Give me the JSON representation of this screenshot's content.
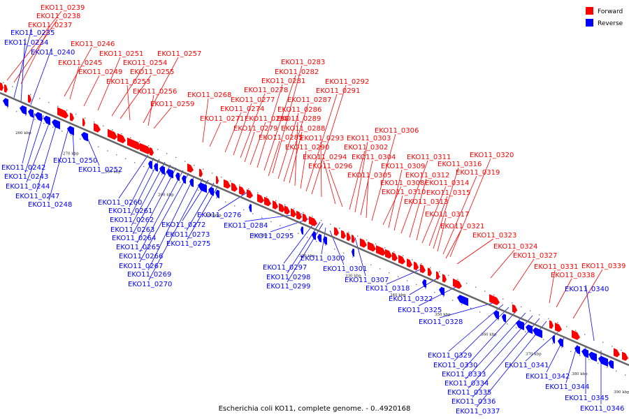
{
  "caption": "Escherichia coli KO11, complete genome. - 0..4920168",
  "legend": [
    {
      "label": "Forward",
      "color": "#ff0000"
    },
    {
      "label": "Reverse",
      "color": "#0000ff"
    }
  ],
  "colors": {
    "forward": "#ff0000",
    "reverse": "#0000ff",
    "backbone": "#666666"
  },
  "ticks": [
    "260 kbp",
    "270 kbp",
    "280 kbp",
    "290 kbp",
    "300 kbp",
    "310 kbp",
    "320 kbp",
    "330 kbp",
    "340 kbp",
    "350 kbp",
    "360 kbp",
    "370 kbp",
    "380 kbp",
    "390 kbp"
  ],
  "forward_labels": [
    "EKO11_0239",
    "EKO11_0238",
    "EKO11_0237",
    "EKO11_0246",
    "EKO11_0245",
    "EKO11_0249",
    "EKO11_0251",
    "EKO11_0254",
    "EKO11_0255",
    "EKO11_0253",
    "EKO11_0257",
    "EKO11_0256",
    "EKO11_0259",
    "EKO11_0268",
    "EKO11_0271",
    "EKO11_0274",
    "EKO11_0277",
    "EKO11_0278",
    "EKO11_0279",
    "EKO11_0280",
    "EKO11_0281",
    "EKO11_0282",
    "EKO11_0283",
    "EKO11_0285",
    "EKO11_0286",
    "EKO11_0287",
    "EKO11_0288",
    "EKO11_0289",
    "EKO11_0290",
    "EKO11_0291",
    "EKO11_0292",
    "EKO11_0293",
    "EKO11_0294",
    "EKO11_0296",
    "EKO11_0302",
    "EKO11_0303",
    "EKO11_0304",
    "EKO11_0305",
    "EKO11_0306",
    "EKO11_0308",
    "EKO11_0309",
    "EKO11_0310",
    "EKO11_0311",
    "EKO11_0312",
    "EKO11_0313",
    "EKO11_0314",
    "EKO11_0315",
    "EKO11_0316",
    "EKO11_0317",
    "EKO11_0319",
    "EKO11_0320",
    "EKO11_0321",
    "EKO11_0323",
    "EKO11_0324",
    "EKO11_0327",
    "EKO11_0331",
    "EKO11_0338",
    "EKO11_0339"
  ],
  "reverse_labels": [
    "EKO11_0235",
    "EKO11_0234",
    "EKO11_0240",
    "EKO11_0242",
    "EKO11_0243",
    "EKO11_0244",
    "EKO11_0247",
    "EKO11_0248",
    "EKO11_0250",
    "EKO11_0252",
    "EKO11_0260",
    "EKO11_0261",
    "EKO11_0262",
    "EKO11_0263",
    "EKO11_0264",
    "EKO11_0265",
    "EKO11_0266",
    "EKO11_0267",
    "EKO11_0269",
    "EKO11_0270",
    "EKO11_0272",
    "EKO11_0273",
    "EKO11_0275",
    "EKO11_0276",
    "EKO11_0284",
    "EKO11_0295",
    "EKO11_0297",
    "EKO11_0298",
    "EKO11_0299",
    "EKO11_0300",
    "EKO11_0301",
    "EKO11_0307",
    "EKO11_0318",
    "EKO11_0322",
    "EKO11_0325",
    "EKO11_0328",
    "EKO11_0329",
    "EKO11_0330",
    "EKO11_0333",
    "EKO11_0334",
    "EKO11_0335",
    "EKO11_0336",
    "EKO11_0337",
    "EKO11_0340",
    "EKO11_0341",
    "EKO11_0342",
    "EKO11_0344",
    "EKO11_0345",
    "EKO11_0346"
  ]
}
